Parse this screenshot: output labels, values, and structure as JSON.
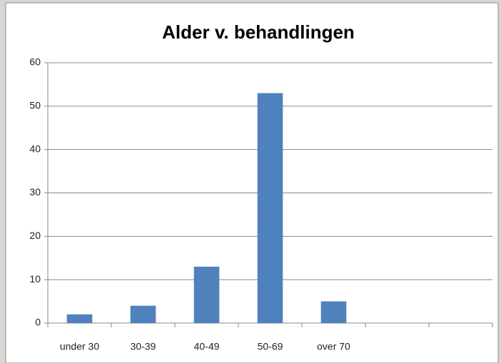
{
  "chart_data": {
    "type": "bar",
    "title": "Alder v. behandlingen",
    "categories": [
      "under 30",
      "30-39",
      "40-49",
      "50-69",
      "over 70",
      null,
      null
    ],
    "values": [
      2,
      4,
      13,
      53,
      5,
      null,
      null
    ],
    "color": "#4f81bd",
    "ylim": [
      0,
      60
    ],
    "yticks": [
      0,
      10,
      20,
      30,
      40,
      50,
      60
    ],
    "grid": true
  }
}
